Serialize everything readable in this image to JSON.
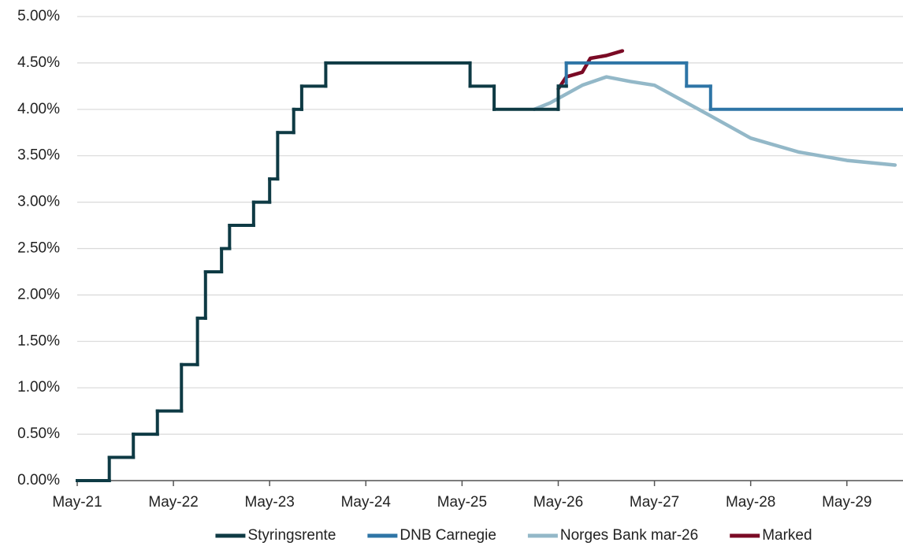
{
  "chart_data": {
    "type": "line",
    "xticks": [
      {
        "value": "2021-05",
        "label": "May-21"
      },
      {
        "value": "2022-05",
        "label": "May-22"
      },
      {
        "value": "2023-05",
        "label": "May-23"
      },
      {
        "value": "2024-05",
        "label": "May-24"
      },
      {
        "value": "2025-05",
        "label": "May-25"
      },
      {
        "value": "2026-05",
        "label": "May-26"
      },
      {
        "value": "2027-05",
        "label": "May-27"
      },
      {
        "value": "2028-05",
        "label": "May-28"
      },
      {
        "value": "2029-05",
        "label": "May-29"
      }
    ],
    "xlim": [
      "2021-05",
      "2029-12"
    ],
    "ylim": [
      0,
      5
    ],
    "yticks": [
      {
        "value": 0,
        "label": "0.00%"
      },
      {
        "value": 0.5,
        "label": "0.50%"
      },
      {
        "value": 1,
        "label": "1.00%"
      },
      {
        "value": 1.5,
        "label": "1.50%"
      },
      {
        "value": 2,
        "label": "2.00%"
      },
      {
        "value": 2.5,
        "label": "2.50%"
      },
      {
        "value": 3,
        "label": "3.00%"
      },
      {
        "value": 3.5,
        "label": "3.50%"
      },
      {
        "value": 4,
        "label": "4.00%"
      },
      {
        "value": 4.5,
        "label": "4.50%"
      },
      {
        "value": 5,
        "label": "5.00%"
      }
    ],
    "grid": true,
    "legend": "bottom",
    "series": [
      {
        "name": "Styringsrente",
        "color": "#0e3a44",
        "drawstyle": "steps-post",
        "x": [
          "2021-05",
          "2021-09",
          "2021-12",
          "2022-03",
          "2022-06",
          "2022-08",
          "2022-09",
          "2022-11",
          "2022-12",
          "2023-03",
          "2023-05",
          "2023-06",
          "2023-08",
          "2023-09",
          "2023-12",
          "2025-06",
          "2025-09",
          "2026-05",
          "2026-06"
        ],
        "values": [
          0,
          0.25,
          0.5,
          0.75,
          1.25,
          1.75,
          2.25,
          2.5,
          2.75,
          3,
          3.25,
          3.75,
          4,
          4.25,
          4.5,
          4.25,
          4,
          4.25,
          4.25
        ]
      },
      {
        "name": "DNB Carnegie",
        "color": "#2e75a6",
        "drawstyle": "steps-post",
        "x": [
          "2026-05",
          "2026-06",
          "2027-09",
          "2027-12",
          "2029-12"
        ],
        "values": [
          4.25,
          4.5,
          4.25,
          4,
          4
        ]
      },
      {
        "name": "Norges Bank mar-26",
        "color": "#93b8c8",
        "drawstyle": "line",
        "x": [
          "2026-02",
          "2026-04",
          "2026-08",
          "2026-11",
          "2027-02",
          "2027-05",
          "2027-12",
          "2028-05",
          "2028-11",
          "2029-05",
          "2029-11"
        ],
        "values": [
          4,
          4.07,
          4.26,
          4.35,
          4.3,
          4.26,
          3.93,
          3.69,
          3.54,
          3.45,
          3.4
        ]
      },
      {
        "name": "Marked",
        "color": "#7a0a25",
        "drawstyle": "line",
        "x": [
          "2026-05",
          "2026-06",
          "2026-08",
          "2026-09",
          "2026-11",
          "2027-01"
        ],
        "values": [
          4.22,
          4.35,
          4.4,
          4.55,
          4.58,
          4.63
        ]
      }
    ]
  }
}
